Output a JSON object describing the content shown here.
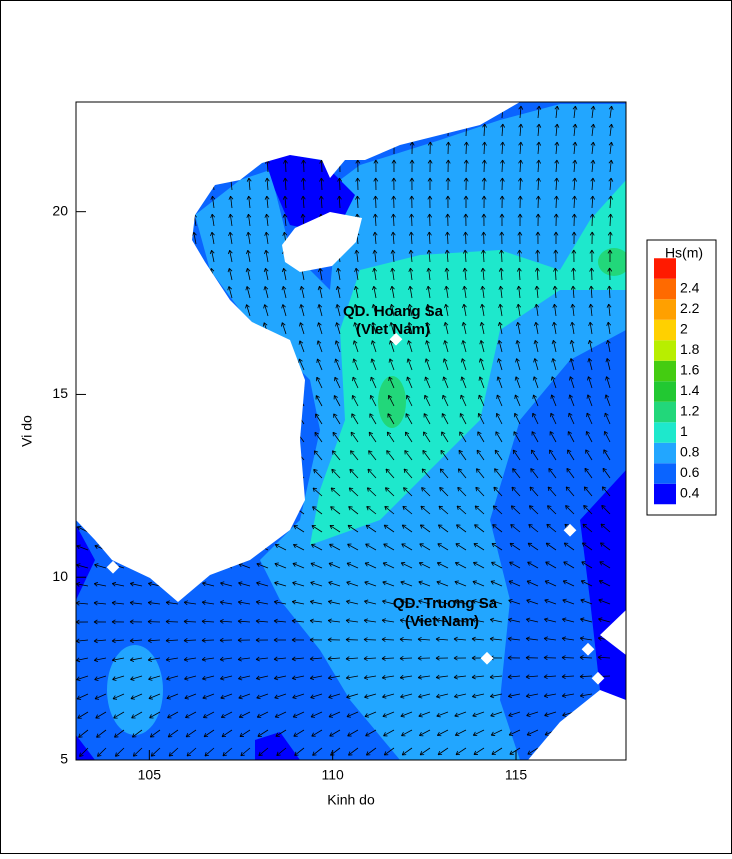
{
  "chart_data": {
    "type": "contour",
    "x_label": "Kinh do",
    "y_label": "Vi do",
    "xlim": [
      103,
      118
    ],
    "ylim": [
      5,
      23
    ],
    "xticks": [
      105,
      110,
      115
    ],
    "yticks": [
      5,
      10,
      15,
      20
    ],
    "annotations": [
      "QD. Hoang Sa",
      "(Viet Nam)",
      "QD. Truong Sa",
      "(Viet Nam)"
    ],
    "colorbar": {
      "title": "Hs(m)",
      "levels": [
        0.4,
        0.6,
        0.8,
        1,
        1.2,
        1.4,
        1.6,
        1.8,
        2,
        2.2,
        2.4
      ],
      "colors": [
        "#0000ff",
        "#0a64ff",
        "#22a6ff",
        "#1ee8cc",
        "#22d77a",
        "#22c832",
        "#44cc11",
        "#b8ee00",
        "#ffd000",
        "#ffa000",
        "#ff6a00",
        "#ff1a00"
      ]
    }
  }
}
